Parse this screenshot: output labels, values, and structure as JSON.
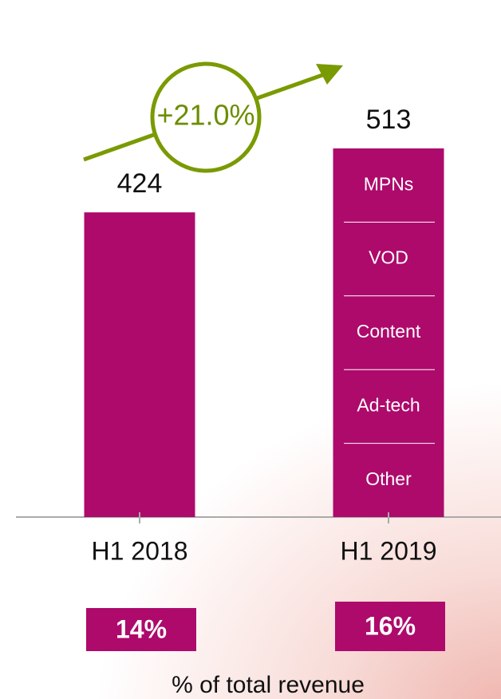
{
  "chart_data": {
    "type": "bar",
    "categories": [
      "H1 2018",
      "H1 2019"
    ],
    "values": [
      424,
      513
    ],
    "color": "#ad0a6c",
    "annotation": "+21.0%",
    "annotation_color": "#7a9a01",
    "segments": [
      "MPNs",
      "VOD",
      "Content",
      "Ad-tech",
      "Other"
    ],
    "shares": {
      "values": [
        14,
        16
      ],
      "value_labels": [
        "14%",
        "16%"
      ],
      "title": "% of total revenue"
    }
  }
}
